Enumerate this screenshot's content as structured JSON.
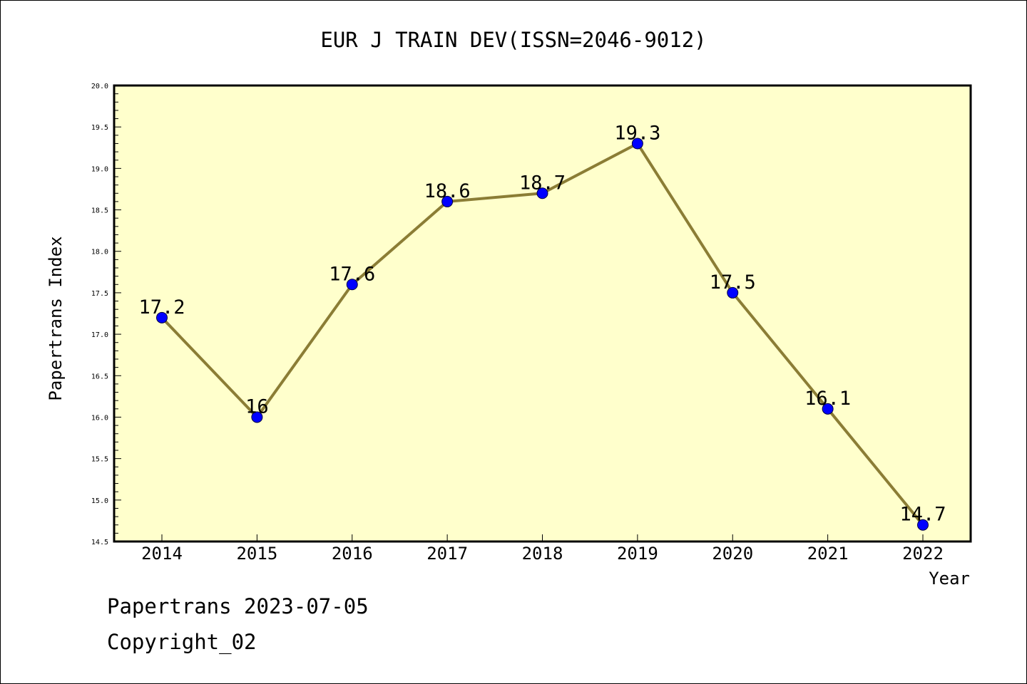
{
  "colors": {
    "plot_background": "#ffffcc",
    "line": "#8b7d35",
    "marker": "#0000ff",
    "axis": "#000000"
  },
  "chart_data": {
    "type": "line",
    "title": "EUR J TRAIN DEV(ISSN=2046-9012)",
    "xlabel": "Year",
    "ylabel": "Papertrans Index",
    "x": [
      "2014",
      "2015",
      "2016",
      "2017",
      "2018",
      "2019",
      "2020",
      "2021",
      "2022"
    ],
    "series": [
      {
        "values": [
          17.2,
          16,
          17.6,
          18.6,
          18.7,
          19.3,
          17.5,
          16.1,
          14.7
        ]
      }
    ],
    "data_labels": [
      "17.2",
      "16",
      "17.6",
      "18.6",
      "18.7",
      "19.3",
      "17.5",
      "16.1",
      "14.7"
    ],
    "ylim": [
      14.5,
      20.0
    ],
    "yticks": [
      "14.5",
      "15.0",
      "15.5",
      "16.0",
      "16.5",
      "17.0",
      "17.5",
      "18.0",
      "18.5",
      "19.0",
      "19.5",
      "20.0"
    ],
    "grid": false,
    "legend": "none"
  },
  "footer": {
    "date_line": "Papertrans 2023-07-05",
    "copyright": "Copyright_02"
  }
}
